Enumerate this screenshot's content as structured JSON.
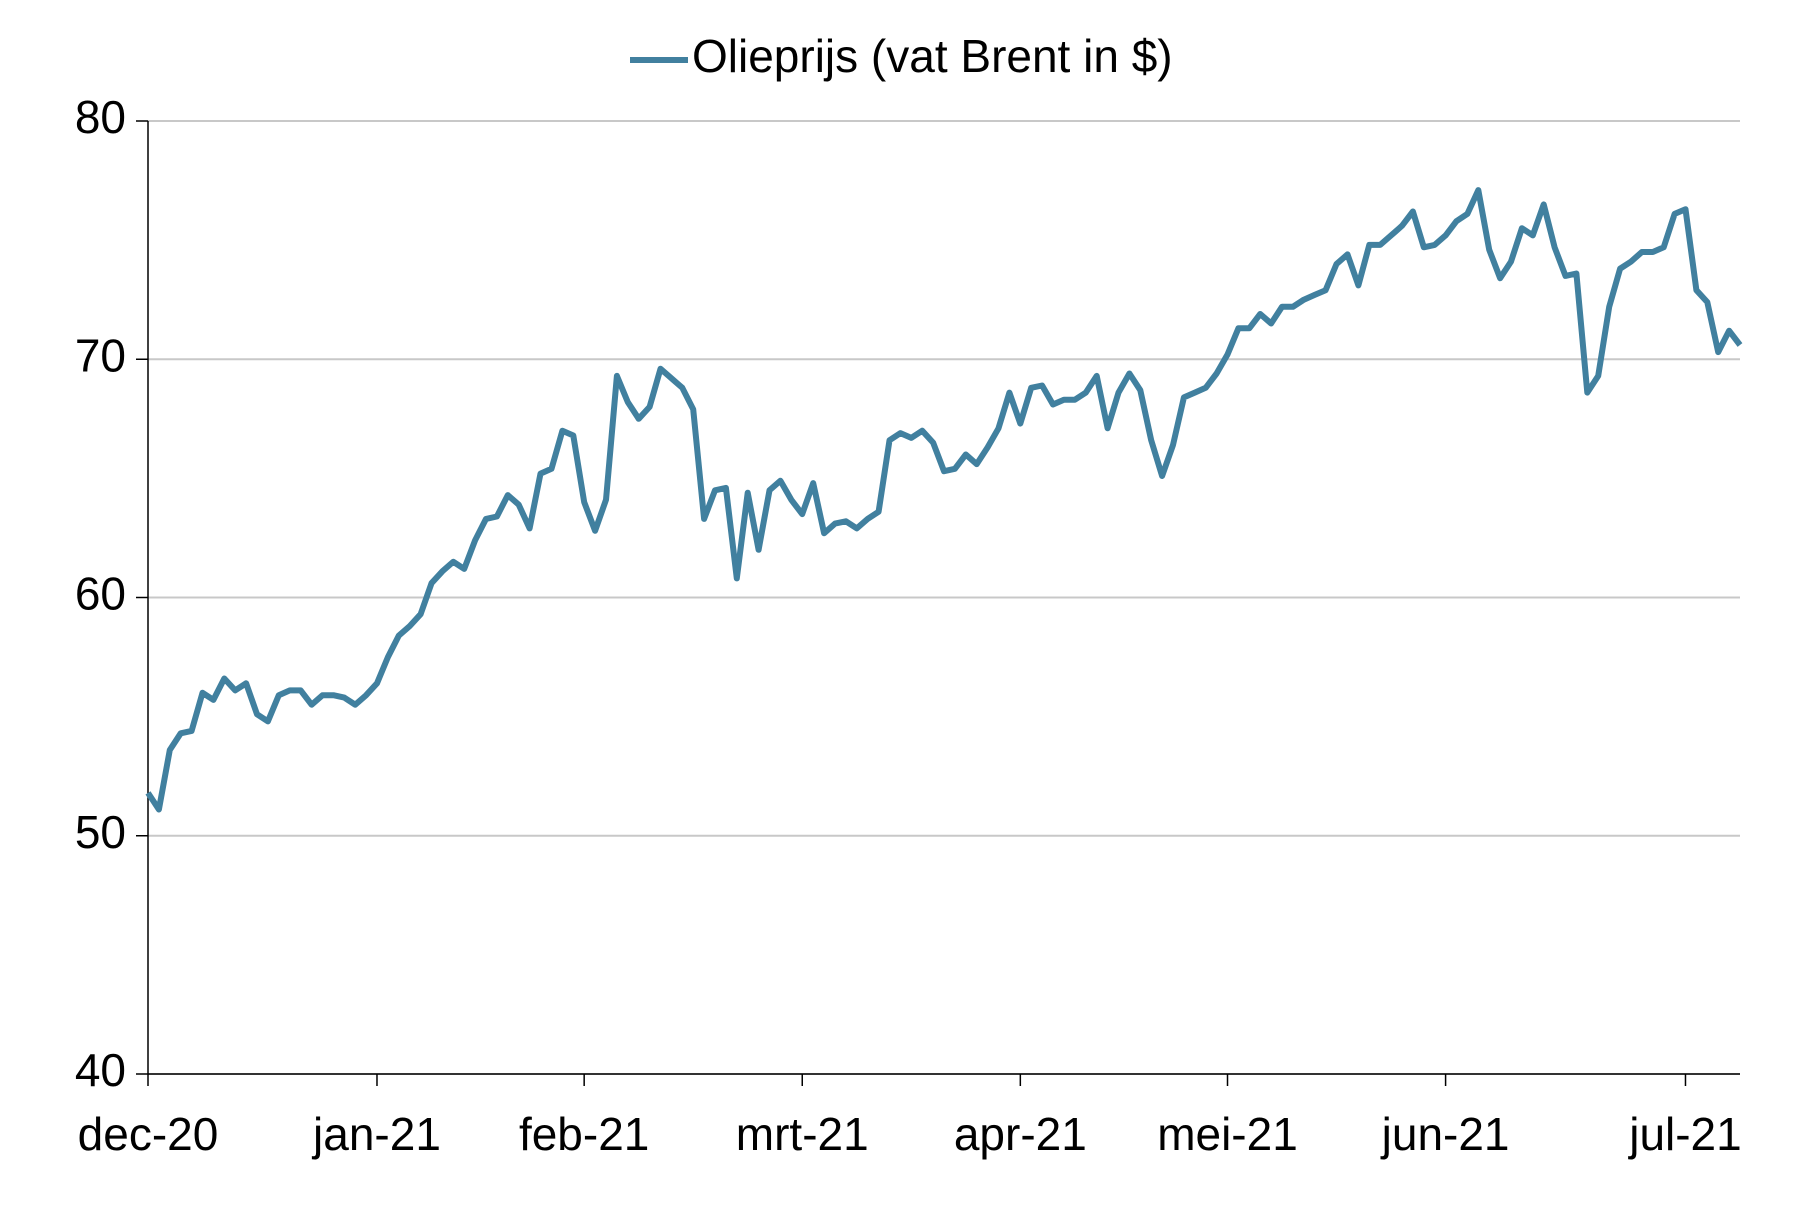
{
  "chart_data": {
    "type": "line",
    "categories": [
      "dec-20",
      null,
      null,
      null,
      null,
      null,
      null,
      null,
      null,
      null,
      null,
      null,
      null,
      null,
      null,
      null,
      null,
      null,
      null,
      null,
      null,
      "jan-21",
      null,
      null,
      null,
      null,
      null,
      null,
      null,
      null,
      null,
      null,
      null,
      null,
      null,
      null,
      null,
      null,
      null,
      null,
      "feb-21",
      null,
      null,
      null,
      null,
      null,
      null,
      null,
      null,
      null,
      null,
      null,
      null,
      null,
      null,
      null,
      null,
      null,
      null,
      null,
      "mrt-21",
      null,
      null,
      null,
      null,
      null,
      null,
      null,
      null,
      null,
      null,
      null,
      null,
      null,
      null,
      null,
      null,
      null,
      null,
      null,
      "apr-21",
      null,
      null,
      null,
      null,
      null,
      null,
      null,
      null,
      null,
      null,
      null,
      null,
      null,
      null,
      null,
      null,
      null,
      null,
      "mei-21",
      null,
      null,
      null,
      null,
      null,
      null,
      null,
      null,
      null,
      null,
      null,
      null,
      null,
      null,
      null,
      null,
      null,
      null,
      null,
      "jun-21",
      null,
      null,
      null,
      null,
      null,
      null,
      null,
      null,
      null,
      null,
      null,
      null,
      null,
      null,
      null,
      null,
      null,
      null,
      null,
      null,
      null,
      "jul-21",
      null,
      null,
      null,
      null,
      null
    ],
    "series": [
      {
        "name": "Olieprijs (vat Brent in $)",
        "color": "#41809f",
        "values": [
          51.8,
          51.1,
          53.6,
          54.3,
          54.4,
          56.0,
          55.7,
          56.6,
          56.1,
          56.4,
          55.1,
          54.8,
          55.9,
          56.1,
          56.1,
          55.5,
          55.9,
          55.9,
          55.8,
          55.5,
          55.9,
          56.4,
          57.5,
          58.4,
          58.8,
          59.3,
          60.6,
          61.1,
          61.5,
          61.2,
          62.4,
          63.3,
          63.4,
          64.3,
          63.9,
          62.9,
          65.2,
          65.4,
          67.0,
          66.8,
          64.0,
          62.8,
          64.1,
          69.3,
          68.2,
          67.5,
          68.0,
          69.6,
          69.2,
          68.8,
          67.9,
          63.3,
          64.5,
          64.6,
          60.8,
          64.4,
          62.0,
          64.5,
          64.9,
          64.1,
          63.5,
          64.8,
          62.7,
          63.1,
          63.2,
          62.9,
          63.3,
          63.6,
          66.6,
          66.9,
          66.7,
          67.0,
          66.5,
          65.3,
          65.4,
          66.0,
          65.6,
          66.3,
          67.1,
          68.6,
          67.3,
          68.8,
          68.9,
          68.1,
          68.3,
          68.3,
          68.6,
          69.3,
          67.1,
          68.6,
          69.4,
          68.7,
          66.6,
          65.1,
          66.4,
          68.4,
          68.6,
          68.8,
          69.4,
          70.2,
          71.3,
          71.3,
          71.9,
          71.5,
          72.2,
          72.2,
          72.5,
          72.7,
          72.9,
          74.0,
          74.4,
          73.1,
          74.8,
          74.8,
          75.2,
          75.6,
          76.2,
          74.7,
          74.8,
          75.2,
          75.8,
          76.1,
          77.1,
          74.6,
          73.4,
          74.1,
          75.5,
          75.2,
          76.5,
          74.7,
          73.5,
          73.6,
          68.6,
          69.3,
          72.2,
          73.8,
          74.1,
          74.5,
          74.5,
          74.7,
          76.1,
          76.3,
          72.9,
          72.4,
          70.3,
          71.2,
          70.6
        ]
      }
    ],
    "ylim": [
      40,
      80
    ],
    "yticks": [
      40,
      50,
      60,
      70,
      80
    ],
    "grid": true,
    "legend": "top"
  }
}
